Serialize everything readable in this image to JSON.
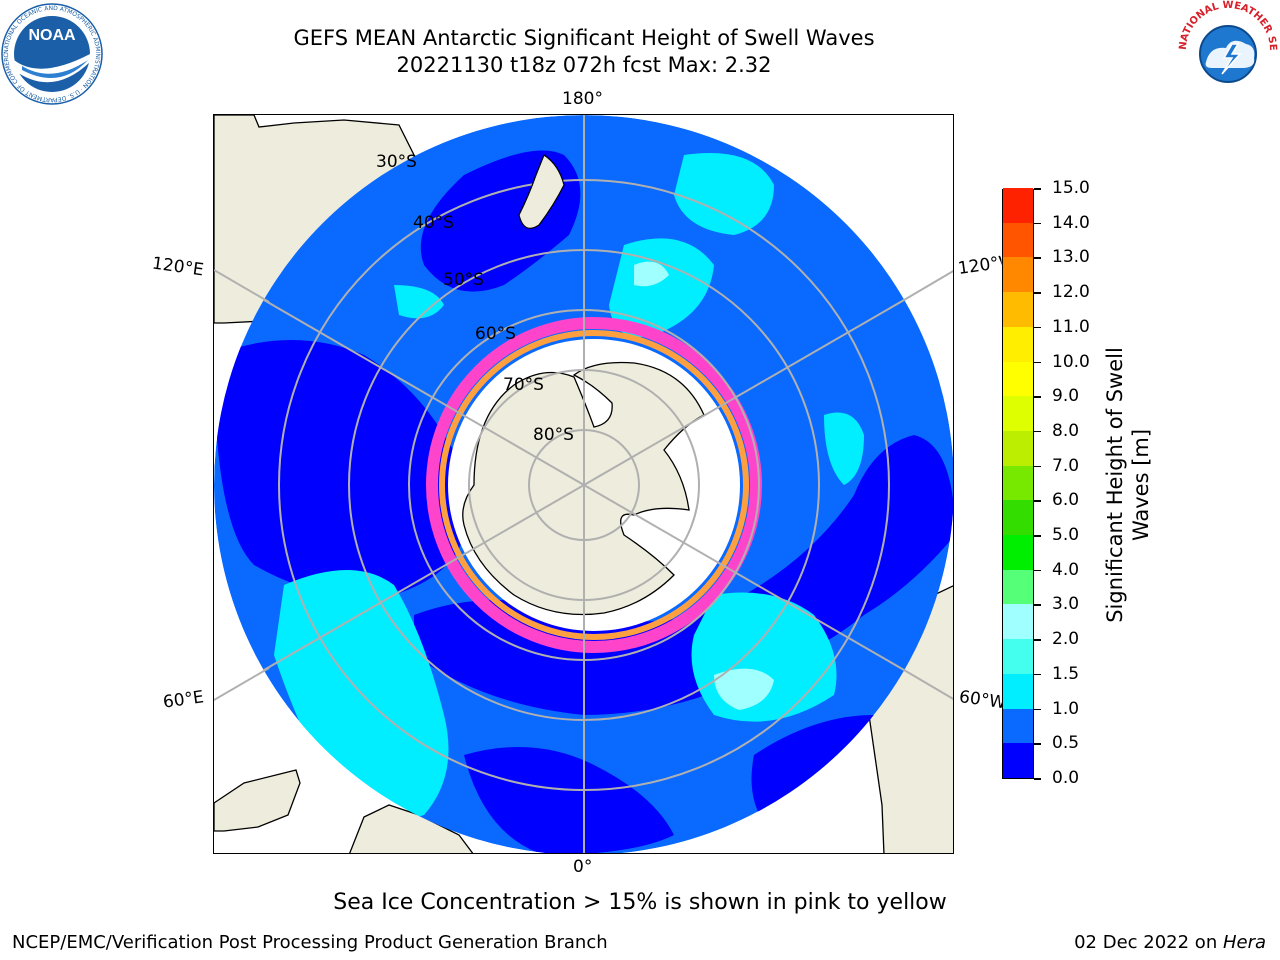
{
  "title": {
    "line1": "GEFS MEAN Antarctic Significant Height of Swell Waves",
    "line2": "20221130 t18z 072h fcst   Max: 2.32"
  },
  "logos": {
    "noaa": {
      "text": "NOAA",
      "ring_text": "NATIONAL OCEANIC AND ATMOSPHERIC ADMINISTRATION · U.S. DEPARTMENT OF COMMERCE",
      "color": "#1a5fa8"
    },
    "nws": {
      "ring_text": "NATIONAL WEATHER SERVICE",
      "color": "#d6202a"
    }
  },
  "map": {
    "projection": "south polar stereographic",
    "longitude_labels": {
      "top": "180°",
      "bottom": "0°",
      "left_upper": "120°E",
      "left_lower": "60°E",
      "right_upper": "120°W",
      "right_lower": "60°W"
    },
    "latitude_labels": [
      "30°S",
      "40°S",
      "50°S",
      "60°S",
      "70°S",
      "80°S"
    ],
    "colors": {
      "land": "#eeecdc",
      "ice": "#ffffff",
      "grid": "#b0b0b0",
      "ice_edge": [
        "#ff44cc",
        "#ffa040",
        "#ffe060"
      ]
    }
  },
  "colorbar": {
    "label_line1": "Significant Height of Swell",
    "label_line2": "Waves [m]",
    "ticks": [
      "0.0",
      "0.5",
      "1.0",
      "1.5",
      "2.0",
      "3.0",
      "4.0",
      "5.0",
      "6.0",
      "7.0",
      "8.0",
      "9.0",
      "10.0",
      "11.0",
      "12.0",
      "13.0",
      "14.0",
      "15.0"
    ],
    "colors": [
      "#0000ff",
      "#0a6aff",
      "#00eeff",
      "#44ffee",
      "#a0ffff",
      "#55ff77",
      "#00ee00",
      "#33dd00",
      "#77e800",
      "#bbee00",
      "#ddff00",
      "#ffff00",
      "#ffee00",
      "#ffbb00",
      "#ff8800",
      "#ff5500",
      "#ff2200"
    ]
  },
  "caption": "Sea Ice Concentration > 15% is shown in pink to yellow",
  "footer": {
    "left": "NCEP/EMC/Verification Post Processing Product Generation Branch",
    "right_date": "02 Dec 2022 on ",
    "right_host": "Hera"
  }
}
